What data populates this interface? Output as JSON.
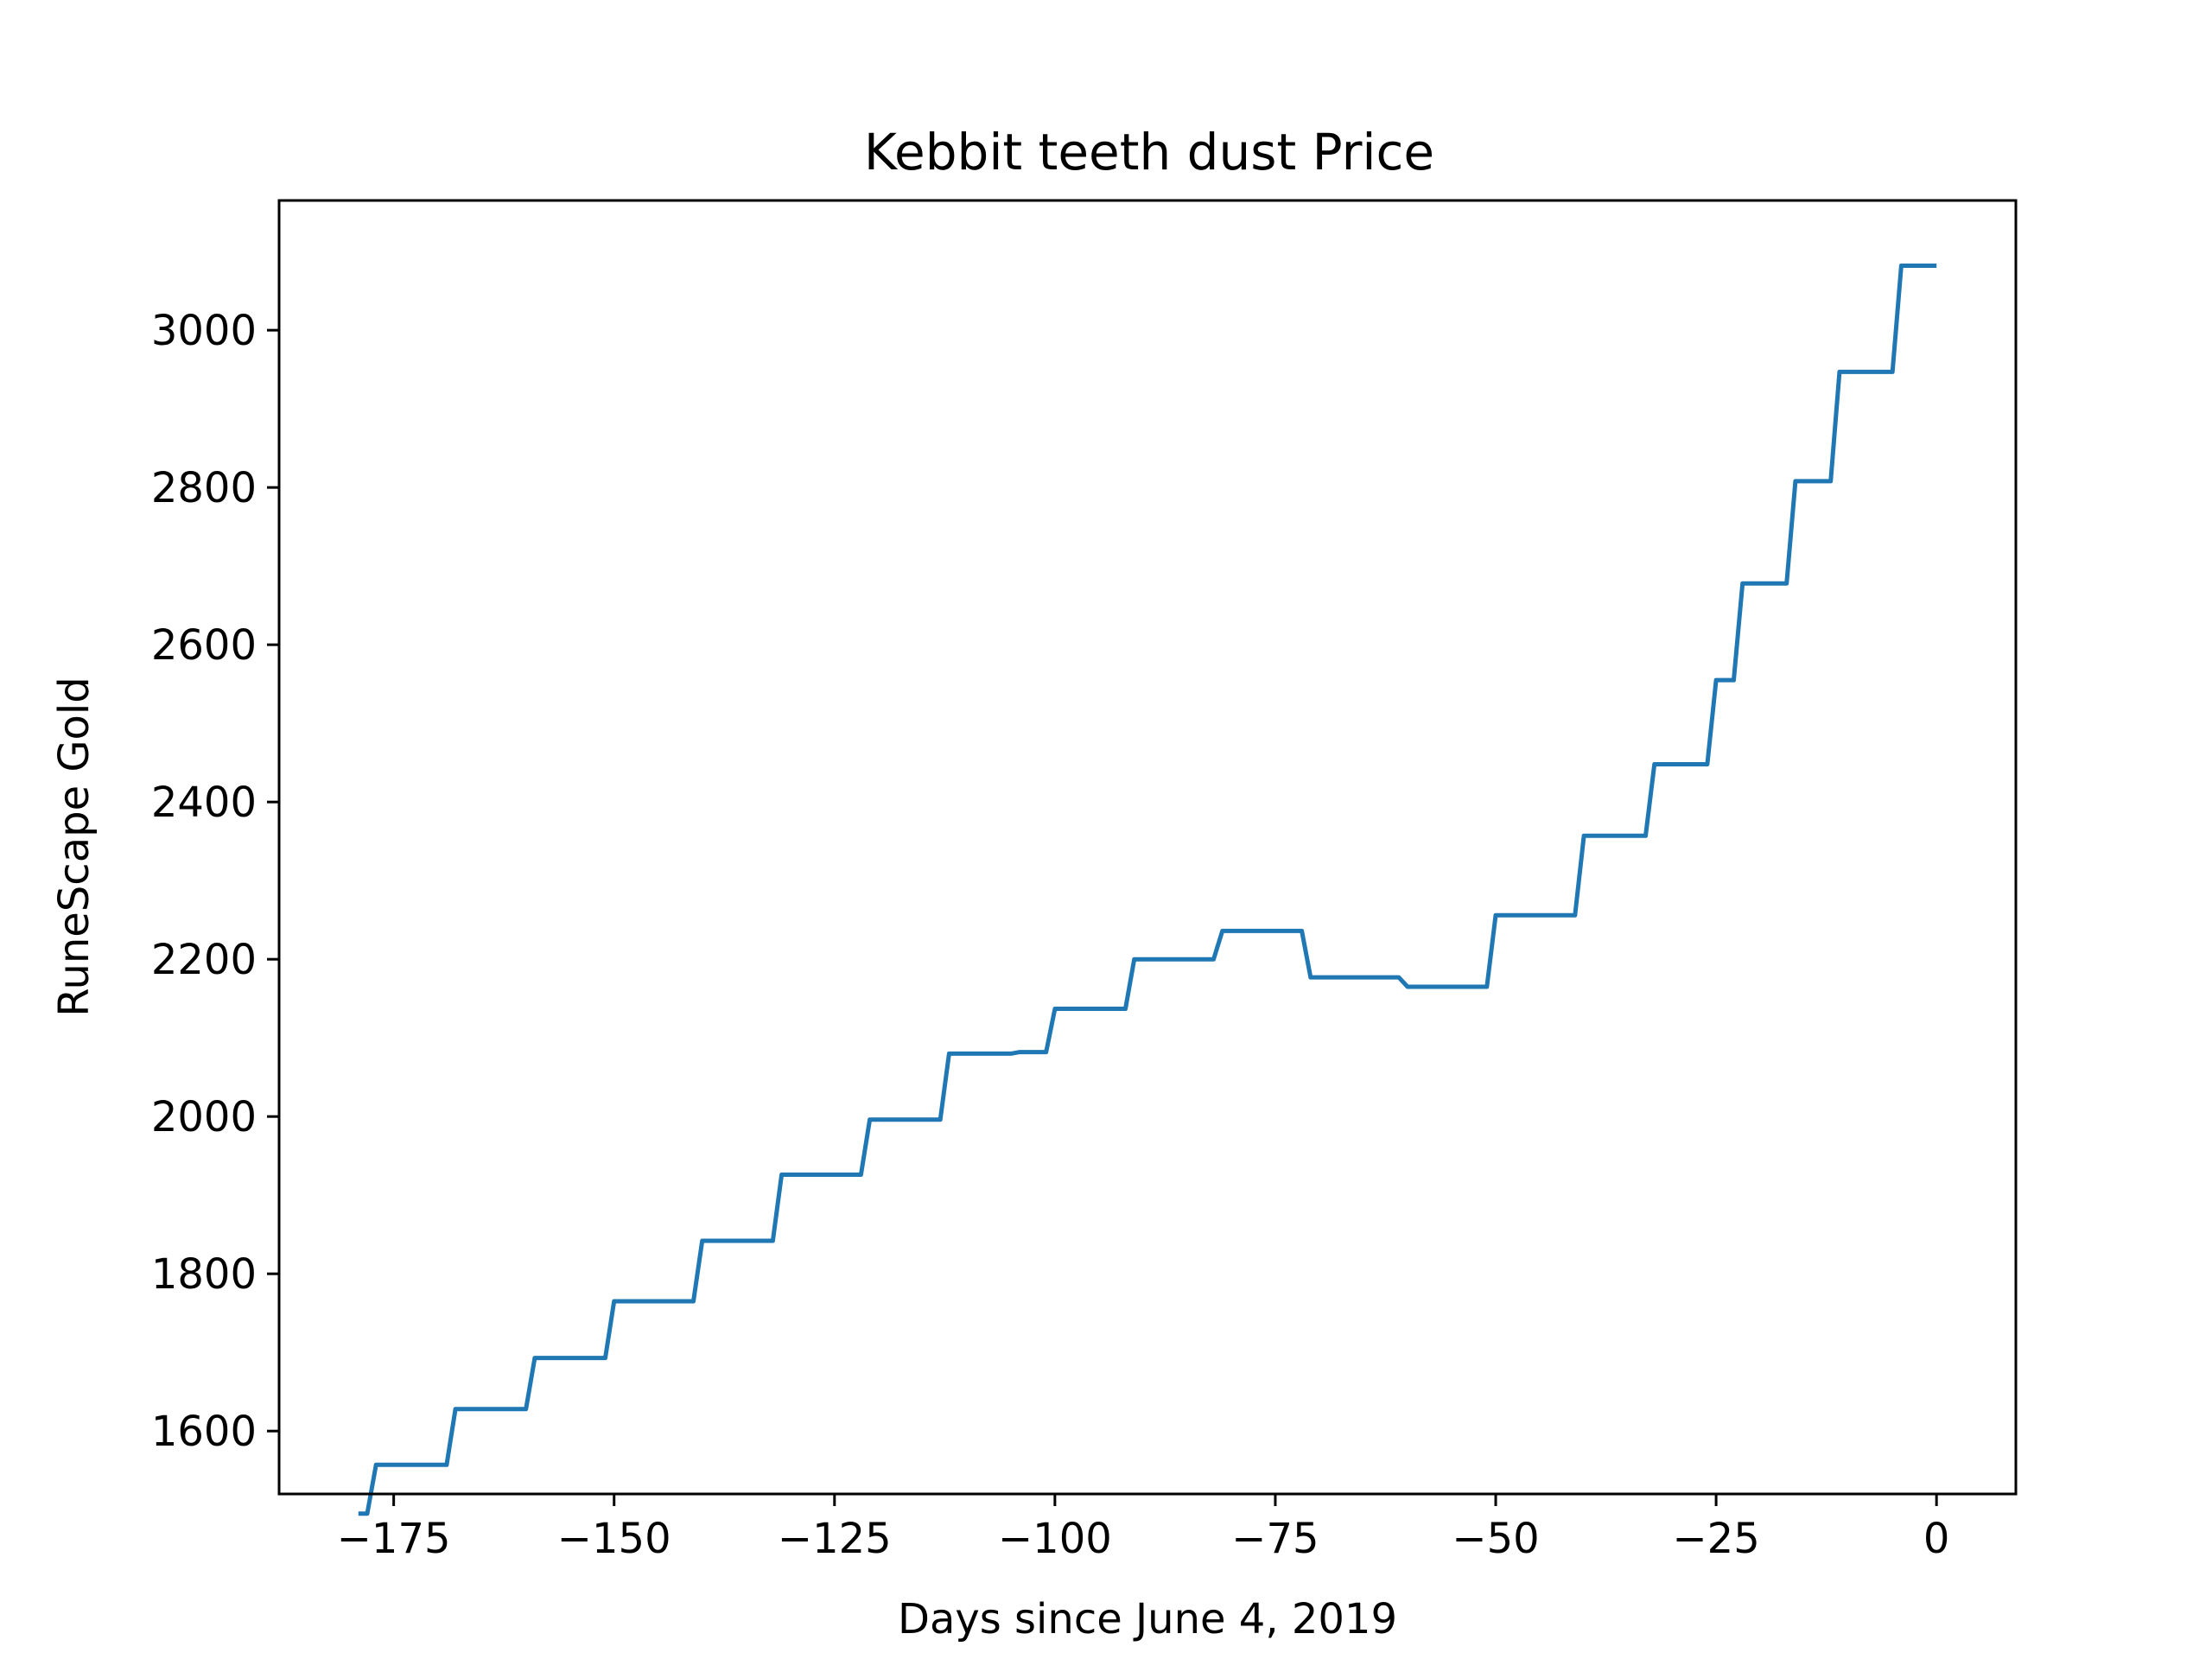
{
  "chart_data": {
    "type": "line",
    "title": "Kebbit teeth dust Price",
    "xlabel": "Days since June 4, 2019",
    "ylabel": "RuneScape Gold",
    "xlim": [
      -188,
      9
    ],
    "ylim": [
      1520,
      3165
    ],
    "xticks": [
      -175,
      -150,
      -125,
      -100,
      -75,
      -50,
      -25,
      0
    ],
    "xtick_labels": [
      "−175",
      "−150",
      "−125",
      "−100",
      "−75",
      "−50",
      "−25",
      "0"
    ],
    "yticks": [
      1600,
      1800,
      2000,
      2200,
      2400,
      2600,
      2800,
      3000
    ],
    "ytick_labels": [
      "1600",
      "1800",
      "2000",
      "2200",
      "2400",
      "2600",
      "2800",
      "3000"
    ],
    "grid": false,
    "line_color": "#1f77b4",
    "series": [
      {
        "x": [
          -179,
          -178,
          -177,
          -169,
          -168,
          -160,
          -159,
          -151,
          -150,
          -141,
          -140,
          -132,
          -131,
          -122,
          -121,
          -113,
          -112,
          -105,
          -104,
          -101,
          -100,
          -92,
          -91,
          -82,
          -81,
          -72,
          -71,
          -61,
          -60,
          -51,
          -50,
          -41,
          -40,
          -33,
          -32,
          -26,
          -25,
          -23,
          -22,
          -17,
          -16,
          -12,
          -11,
          -5,
          -4,
          0
        ],
        "y": [
          1495,
          1495,
          1557,
          1557,
          1628,
          1628,
          1693,
          1693,
          1765,
          1765,
          1842,
          1842,
          1926,
          1926,
          1996,
          1996,
          2080,
          2080,
          2082,
          2082,
          2137,
          2137,
          2200,
          2200,
          2236,
          2236,
          2177,
          2177,
          2165,
          2165,
          2256,
          2256,
          2357,
          2357,
          2448,
          2448,
          2555,
          2555,
          2678,
          2678,
          2808,
          2808,
          2947,
          2947,
          3082,
          3082
        ]
      }
    ]
  }
}
